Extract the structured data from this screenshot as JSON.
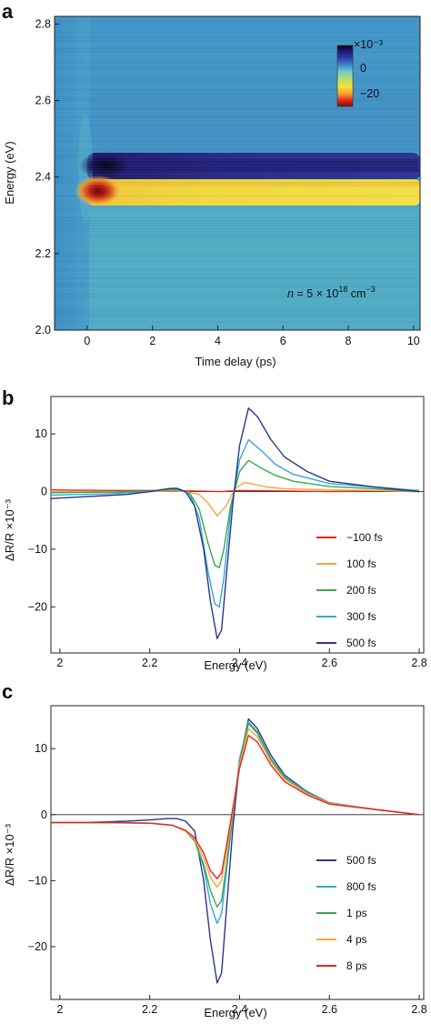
{
  "chart_data": [
    {
      "panel": "a",
      "type": "heatmap",
      "xlabel": "Time delay (ps)",
      "ylabel": "Energy (eV)",
      "xlim": [
        -1,
        10.2
      ],
      "ylim": [
        2.0,
        2.82
      ],
      "xticks": [
        0,
        2,
        4,
        6,
        8,
        10
      ],
      "yticks": [
        2.0,
        2.2,
        2.4,
        2.6,
        2.8
      ],
      "xtick_labels": [
        "0",
        "2",
        "4",
        "6",
        "8",
        "10"
      ],
      "ytick_labels": [
        "2.0",
        "2.2",
        "2.4",
        "2.6",
        "2.8"
      ],
      "colorbar": {
        "unit": "×10⁻³",
        "ticks": [
          "0",
          "−20"
        ],
        "tick_values": [
          0,
          -20
        ],
        "range": [
          -25,
          15
        ]
      },
      "annotation": {
        "n": "n",
        "eq": " = 5 × 10",
        "exp": "18",
        "unit": " cm",
        "uexp": "−3"
      },
      "features": [
        {
          "energy": 2.42,
          "sign": "positive",
          "peak_delay": 0.6
        },
        {
          "energy": 2.35,
          "sign": "negative",
          "peak_delay": 0.4
        }
      ]
    },
    {
      "panel": "b",
      "type": "line",
      "xlabel": "Energy (eV)",
      "ylabel": "ΔR/R ×10⁻³",
      "xlim": [
        1.98,
        2.81
      ],
      "ylim": [
        -28,
        16.5
      ],
      "xticks": [
        2.0,
        2.2,
        2.4,
        2.6,
        2.8
      ],
      "xtick_labels": [
        "2",
        "2.2",
        "2.4",
        "2.6",
        "2.8"
      ],
      "yticks": [
        -20,
        -10,
        0,
        10
      ],
      "ytick_labels": [
        "−20",
        "−10",
        "0",
        "10"
      ],
      "zero_line": true,
      "series": [
        {
          "name": "−100 fs",
          "color": "#e8261f",
          "x": [
            1.98,
            2.1,
            2.2,
            2.3,
            2.36,
            2.4,
            2.5,
            2.6,
            2.7,
            2.8
          ],
          "y": [
            0.3,
            0.2,
            0.2,
            0.1,
            0.0,
            0.2,
            0.1,
            0.0,
            0.1,
            0.0
          ]
        },
        {
          "name": "100 fs",
          "color": "#f6a540",
          "x": [
            1.98,
            2.1,
            2.2,
            2.25,
            2.28,
            2.31,
            2.33,
            2.35,
            2.37,
            2.39,
            2.41,
            2.43,
            2.46,
            2.5,
            2.6,
            2.7,
            2.8
          ],
          "y": [
            0.0,
            0.0,
            0.0,
            0.1,
            0.0,
            -0.5,
            -2.0,
            -4.2,
            -2.5,
            0.5,
            1.6,
            1.3,
            0.8,
            0.5,
            0.3,
            0.2,
            0.0
          ]
        },
        {
          "name": "200 fs",
          "color": "#3aa84a",
          "x": [
            1.98,
            2.1,
            2.2,
            2.25,
            2.27,
            2.29,
            2.31,
            2.33,
            2.345,
            2.355,
            2.365,
            2.38,
            2.4,
            2.42,
            2.45,
            2.48,
            2.52,
            2.6,
            2.7,
            2.8
          ],
          "y": [
            -0.2,
            -0.1,
            0.1,
            0.4,
            0.2,
            -0.4,
            -3.0,
            -9.0,
            -12.8,
            -13.2,
            -10.0,
            -2.5,
            3.5,
            5.4,
            4.0,
            2.8,
            1.8,
            0.9,
            0.5,
            0.0
          ]
        },
        {
          "name": "300 fs",
          "color": "#33a9d6",
          "x": [
            1.98,
            2.1,
            2.2,
            2.25,
            2.27,
            2.29,
            2.31,
            2.33,
            2.345,
            2.355,
            2.365,
            2.38,
            2.4,
            2.42,
            2.45,
            2.48,
            2.52,
            2.6,
            2.7,
            2.8
          ],
          "y": [
            -0.6,
            -0.4,
            0.0,
            0.6,
            0.3,
            -0.6,
            -4.5,
            -14.0,
            -19.5,
            -20.0,
            -15.0,
            -3.5,
            5.5,
            9.0,
            7.0,
            4.7,
            3.0,
            1.4,
            0.8,
            0.2
          ]
        },
        {
          "name": "500 fs",
          "color": "#2c3590",
          "x": [
            1.98,
            2.05,
            2.1,
            2.15,
            2.2,
            2.24,
            2.26,
            2.28,
            2.3,
            2.32,
            2.335,
            2.35,
            2.36,
            2.37,
            2.385,
            2.4,
            2.42,
            2.44,
            2.47,
            2.5,
            2.55,
            2.6,
            2.7,
            2.8
          ],
          "y": [
            -1.2,
            -0.9,
            -0.7,
            -0.5,
            0.0,
            0.5,
            0.6,
            0.0,
            -2.5,
            -10.0,
            -19.0,
            -25.5,
            -24.0,
            -15.0,
            -2.0,
            8.0,
            14.5,
            13.0,
            9.0,
            6.0,
            3.5,
            1.8,
            0.8,
            0.0
          ]
        }
      ]
    },
    {
      "panel": "c",
      "type": "line",
      "xlabel": "Energy (eV)",
      "ylabel": "ΔR/R ×10⁻³",
      "xlim": [
        1.98,
        2.81
      ],
      "ylim": [
        -28,
        16.5
      ],
      "xticks": [
        2.0,
        2.2,
        2.4,
        2.6,
        2.8
      ],
      "xtick_labels": [
        "2",
        "2.2",
        "2.4",
        "2.6",
        "2.8"
      ],
      "yticks": [
        -20,
        -10,
        0,
        10
      ],
      "ytick_labels": [
        "−20",
        "−10",
        "0",
        "10"
      ],
      "zero_line": true,
      "series": [
        {
          "name": "500 fs",
          "color": "#2c3590",
          "x": [
            1.98,
            2.05,
            2.1,
            2.15,
            2.2,
            2.24,
            2.26,
            2.28,
            2.3,
            2.32,
            2.335,
            2.35,
            2.36,
            2.37,
            2.385,
            2.4,
            2.42,
            2.44,
            2.47,
            2.5,
            2.55,
            2.6,
            2.7,
            2.8
          ],
          "y": [
            -1.2,
            -1.2,
            -1.1,
            -1.0,
            -0.8,
            -0.6,
            -0.6,
            -1.0,
            -2.5,
            -10.0,
            -19.0,
            -25.5,
            -24.0,
            -15.0,
            -2.0,
            8.0,
            14.5,
            13.0,
            9.0,
            6.0,
            3.5,
            1.8,
            0.8,
            0.0
          ]
        },
        {
          "name": "800 fs",
          "color": "#33a9d6",
          "x": [
            1.98,
            2.1,
            2.2,
            2.25,
            2.28,
            2.3,
            2.32,
            2.335,
            2.35,
            2.36,
            2.37,
            2.385,
            2.4,
            2.42,
            2.44,
            2.47,
            2.5,
            2.55,
            2.6,
            2.7,
            2.8
          ],
          "y": [
            -1.2,
            -1.2,
            -1.3,
            -1.6,
            -2.5,
            -4.0,
            -8.0,
            -13.5,
            -16.5,
            -15.0,
            -9.0,
            0.0,
            8.5,
            14.0,
            12.5,
            8.5,
            5.8,
            3.4,
            1.8,
            0.8,
            0.0
          ]
        },
        {
          "name": "1 ps",
          "color": "#3aa84a",
          "x": [
            1.98,
            2.1,
            2.2,
            2.25,
            2.28,
            2.3,
            2.32,
            2.335,
            2.35,
            2.36,
            2.37,
            2.385,
            2.4,
            2.42,
            2.44,
            2.47,
            2.5,
            2.55,
            2.6,
            2.7,
            2.8
          ],
          "y": [
            -1.2,
            -1.2,
            -1.3,
            -1.6,
            -2.5,
            -4.0,
            -7.5,
            -11.5,
            -14.0,
            -13.0,
            -8.0,
            0.0,
            8.0,
            13.8,
            12.3,
            8.3,
            5.6,
            3.3,
            1.7,
            0.8,
            0.0
          ]
        },
        {
          "name": "4 ps",
          "color": "#f6a540",
          "x": [
            1.98,
            2.1,
            2.2,
            2.25,
            2.28,
            2.3,
            2.32,
            2.335,
            2.35,
            2.36,
            2.37,
            2.385,
            2.4,
            2.42,
            2.44,
            2.47,
            2.5,
            2.55,
            2.6,
            2.7,
            2.8
          ],
          "y": [
            -1.2,
            -1.2,
            -1.3,
            -1.6,
            -2.5,
            -3.8,
            -6.5,
            -9.5,
            -11.0,
            -10.0,
            -6.0,
            0.5,
            7.5,
            13.0,
            11.8,
            8.0,
            5.4,
            3.2,
            1.7,
            0.8,
            0.0
          ]
        },
        {
          "name": "8 ps",
          "color": "#e8261f",
          "x": [
            1.98,
            2.1,
            2.2,
            2.25,
            2.28,
            2.3,
            2.32,
            2.335,
            2.35,
            2.36,
            2.37,
            2.385,
            2.4,
            2.42,
            2.44,
            2.47,
            2.5,
            2.55,
            2.6,
            2.7,
            2.8
          ],
          "y": [
            -1.2,
            -1.2,
            -1.3,
            -1.6,
            -2.4,
            -3.5,
            -5.8,
            -8.5,
            -9.7,
            -8.8,
            -5.0,
            1.0,
            7.0,
            12.0,
            11.0,
            7.5,
            5.0,
            3.0,
            1.6,
            0.8,
            0.0
          ]
        }
      ]
    }
  ]
}
